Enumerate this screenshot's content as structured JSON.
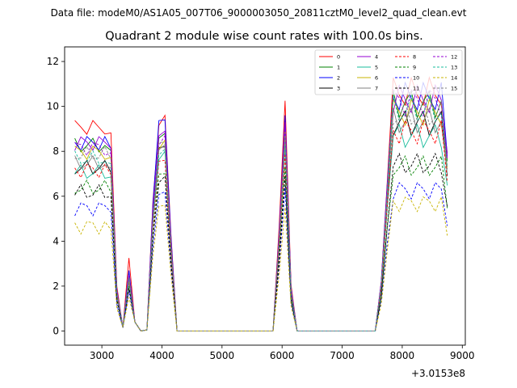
{
  "chart_data": {
    "type": "line",
    "suptitle": "Data file: modeM0/AS1A05_007T06_9000003050_20811cztM0_level2_quad_clean.evt",
    "title": "Quadrant 2 module wise count rates with 100.0s bins.",
    "xlabel": "",
    "ylabel": "",
    "x_offset_label": "+3.0153e8",
    "xlim": [
      2380,
      9050
    ],
    "ylim": [
      -0.63,
      12.65
    ],
    "xticks": [
      3000,
      4000,
      5000,
      6000,
      7000,
      8000,
      9000
    ],
    "xtick_labels": [
      "3000",
      "4000",
      "5000",
      "6000",
      "7000",
      "8000",
      "9000"
    ],
    "yticks": [
      0,
      2,
      4,
      6,
      8,
      10,
      12
    ],
    "ytick_labels": [
      "0",
      "2",
      "4",
      "6",
      "8",
      "10",
      "12"
    ],
    "grid": false,
    "legend_position": "top-right",
    "legend_columns": 4,
    "x_shape": [
      2550,
      2650,
      2750,
      2850,
      2950,
      3050,
      3150,
      3250,
      3350,
      3450,
      3550,
      3650,
      3750,
      3850,
      3950,
      4050,
      4150,
      4250,
      5850,
      5950,
      6050,
      6150,
      6250,
      7550,
      7650,
      7750,
      7850,
      7950,
      8050,
      8150,
      8250,
      8350,
      8450,
      8550,
      8650,
      8750
    ],
    "shape": [
      0.0,
      0.0,
      0.0,
      0.0,
      0.0,
      0.0,
      0.0,
      0.0,
      0.0,
      0.0,
      0.0,
      0.0,
      0.0,
      0.0,
      0.0,
      0.0,
      0.0,
      0.0,
      0.0,
      0.0,
      0.0,
      0.0,
      0.0,
      0.0,
      0.0,
      0.0,
      0.0,
      0.0,
      0.0,
      0.0,
      0.0,
      0.0,
      0.0,
      0.0,
      0.0,
      0.0
    ],
    "series": [
      {
        "name": "0",
        "color": "#ff0000",
        "dash": "solid",
        "start": 9.0,
        "peak1": 3.25,
        "peak2": 9.6,
        "peak3": 10.25,
        "end_level": 11.0
      },
      {
        "name": "1",
        "color": "#008000",
        "dash": "solid",
        "start": 8.2,
        "peak1": 2.6,
        "peak2": 8.8,
        "peak3": 9.1,
        "end_level": 10.5
      },
      {
        "name": "2",
        "color": "#0000ff",
        "dash": "solid",
        "start": 8.3,
        "peak1": 2.7,
        "peak2": 9.4,
        "peak3": 9.6,
        "end_level": 10.8
      },
      {
        "name": "3",
        "color": "#000000",
        "dash": "solid",
        "start": 7.2,
        "peak1": 2.3,
        "peak2": 8.2,
        "peak3": 8.5,
        "end_level": 9.6
      },
      {
        "name": "4",
        "color": "#9400d3",
        "dash": "solid",
        "start": 8.3,
        "peak1": 2.5,
        "peak2": 8.9,
        "peak3": 9.3,
        "end_level": 10.7
      },
      {
        "name": "5",
        "color": "#1abc9c",
        "dash": "solid",
        "start": 7.0,
        "peak1": 2.2,
        "peak2": 8.0,
        "peak3": 8.2,
        "end_level": 9.0
      },
      {
        "name": "6",
        "color": "#c8b400",
        "dash": "solid",
        "start": 7.9,
        "peak1": 2.4,
        "peak2": 8.5,
        "peak3": 8.9,
        "end_level": 10.1
      },
      {
        "name": "7",
        "color": "#808080",
        "dash": "solid",
        "start": 7.4,
        "peak1": 2.3,
        "peak2": 8.3,
        "peak3": 8.6,
        "end_level": 9.7
      },
      {
        "name": "8",
        "color": "#ff0000",
        "dash": "dashed",
        "start": 7.1,
        "peak1": 2.2,
        "peak2": 7.6,
        "peak3": 7.9,
        "end_level": 9.2
      },
      {
        "name": "9",
        "color": "#008000",
        "dash": "dashed",
        "start": 6.3,
        "peak1": 2.0,
        "peak2": 7.0,
        "peak3": 7.3,
        "end_level": 7.6
      },
      {
        "name": "10",
        "color": "#0000ff",
        "dash": "dashed",
        "start": 5.4,
        "peak1": 1.8,
        "peak2": 6.2,
        "peak3": 6.4,
        "end_level": 6.5
      },
      {
        "name": "11",
        "color": "#000000",
        "dash": "dashed",
        "start": 6.1,
        "peak1": 1.9,
        "peak2": 6.9,
        "peak3": 6.9,
        "end_level": 7.7
      },
      {
        "name": "12",
        "color": "#9400d3",
        "dash": "dashed",
        "start": 8.1,
        "peak1": 2.5,
        "peak2": 8.7,
        "peak3": 9.0,
        "end_level": 10.6
      },
      {
        "name": "13",
        "color": "#1abc9c",
        "dash": "dashed",
        "start": 7.6,
        "peak1": 2.3,
        "peak2": 8.1,
        "peak3": 8.4,
        "end_level": 10.2
      },
      {
        "name": "14",
        "color": "#c8b400",
        "dash": "dashed",
        "start": 4.6,
        "peak1": 1.5,
        "peak2": 5.6,
        "peak3": 5.5,
        "end_level": 5.9
      },
      {
        "name": "15",
        "color": "#808080",
        "dash": "dashed",
        "start": 7.8,
        "peak1": 2.4,
        "peak2": 8.4,
        "peak3": 8.7,
        "end_level": 10.0
      }
    ]
  }
}
